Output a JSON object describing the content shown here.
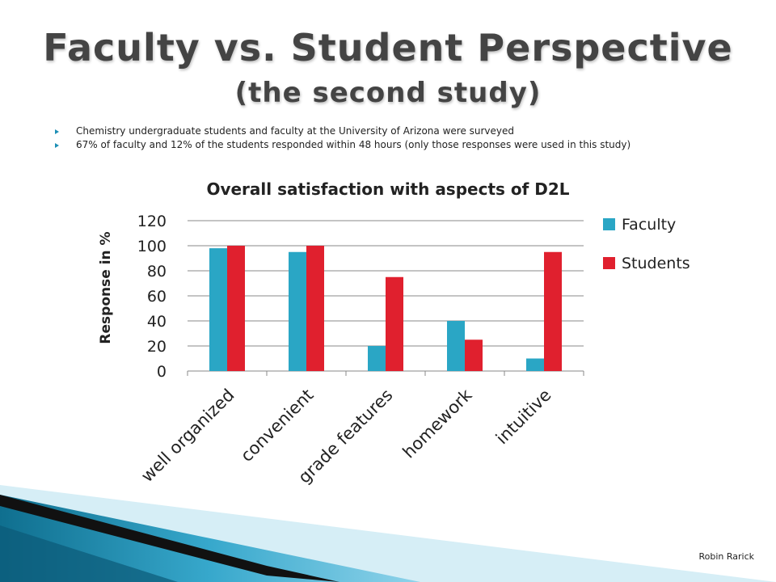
{
  "slide": {
    "title": "Faculty vs. Student Perspective",
    "subtitle": "(the second study)",
    "bullets": [
      "Chemistry undergraduate students and faculty at the University of Arizona were surveyed",
      "67% of faculty and 12% of the students responded within 48 hours (only those responses were used in this study)"
    ],
    "author": "Robin Rarick"
  },
  "colors": {
    "faculty": "#2aa6c5",
    "students": "#e0202e",
    "grid": "#888888"
  },
  "chart_data": {
    "type": "bar",
    "title": "Overall satisfaction with aspects of D2L",
    "xlabel": "",
    "ylabel": "Response in %",
    "ylim": [
      0,
      120
    ],
    "yticks": [
      0,
      20,
      40,
      60,
      80,
      100,
      120
    ],
    "grid": true,
    "legend_position": "right",
    "categories": [
      "well organized",
      "convenient",
      "grade features",
      "homework",
      "intuitive"
    ],
    "series": [
      {
        "name": "Faculty",
        "values": [
          98,
          95,
          20,
          40,
          10
        ]
      },
      {
        "name": "Students",
        "values": [
          100,
          100,
          75,
          25,
          95
        ]
      }
    ]
  }
}
